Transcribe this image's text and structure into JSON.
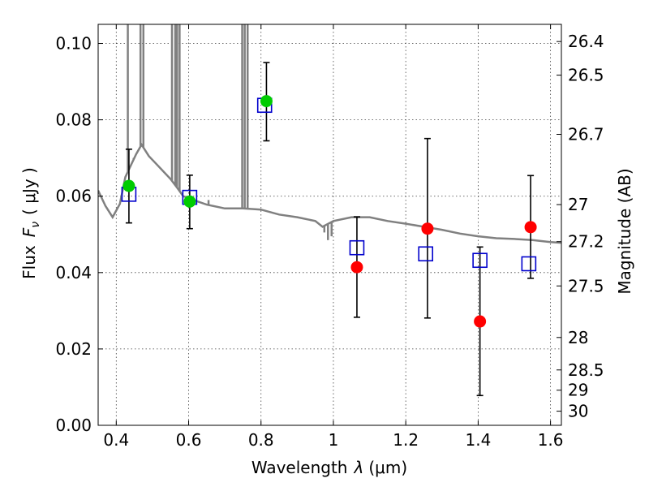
{
  "chart_data": {
    "type": "scatter",
    "xlabel_prefix": "Wavelength",
    "xlabel_symbol": "λ",
    "xlabel_unit": "(μm)",
    "ylabel_prefix": "Flux",
    "ylabel_symbol": "F",
    "ylabel_subscript": "ν",
    "ylabel_unit": "( μJy )",
    "y2label": "Magnitude (AB)",
    "xlim": [
      0.35,
      1.63
    ],
    "ylim": [
      0.0,
      0.105
    ],
    "xticks": [
      0.4,
      0.6,
      0.8,
      1.0,
      1.2,
      1.4,
      1.6
    ],
    "xtick_labels": [
      "0.4",
      "0.6",
      "0.8",
      "1",
      "1.2",
      "1.4",
      "1.6"
    ],
    "yticks": [
      0.0,
      0.02,
      0.04,
      0.06,
      0.08,
      0.1
    ],
    "ytick_labels": [
      "0.00",
      "0.02",
      "0.04",
      "0.06",
      "0.08",
      "0.10"
    ],
    "mag_ticks": [
      {
        "label": "26.4",
        "flux": 0.1005
      },
      {
        "label": "26.5",
        "flux": 0.0917
      },
      {
        "label": "26.7",
        "flux": 0.0762
      },
      {
        "label": "27",
        "flux": 0.0578
      },
      {
        "label": "27.2",
        "flux": 0.0481
      },
      {
        "label": "27.5",
        "flux": 0.0365
      },
      {
        "label": "28",
        "flux": 0.023
      },
      {
        "label": "28.5",
        "flux": 0.0145
      },
      {
        "label": "29",
        "flux": 0.0092
      },
      {
        "label": "30",
        "flux": 0.0037
      }
    ],
    "colors": {
      "template": "#808080",
      "model": "#0000cc",
      "observed_detected": "#00cc00",
      "observed_faint": "#ff0000",
      "errorbar": "#000000"
    },
    "series": [
      {
        "name": "model-template",
        "kind": "line",
        "x": [
          0.35,
          0.37,
          0.39,
          0.41,
          0.425,
          0.44,
          0.455,
          0.47,
          0.49,
          0.51,
          0.53,
          0.55,
          0.57,
          0.585,
          0.6,
          0.62,
          0.65,
          0.7,
          0.75,
          0.8,
          0.85,
          0.9,
          0.95,
          0.97,
          1.0,
          1.05,
          1.1,
          1.15,
          1.2,
          1.25,
          1.3,
          1.35,
          1.4,
          1.45,
          1.5,
          1.55,
          1.6,
          1.63
        ],
        "y": [
          0.0615,
          0.0575,
          0.0545,
          0.058,
          0.065,
          0.068,
          0.071,
          0.0735,
          0.0705,
          0.0685,
          0.0665,
          0.0645,
          0.062,
          0.06,
          0.0595,
          0.0588,
          0.0578,
          0.0568,
          0.0568,
          0.0565,
          0.0552,
          0.0545,
          0.0535,
          0.052,
          0.0535,
          0.0545,
          0.0545,
          0.0535,
          0.0528,
          0.052,
          0.0512,
          0.0502,
          0.0495,
          0.049,
          0.0488,
          0.0485,
          0.048,
          0.0478
        ]
      },
      {
        "name": "template-emission-lines",
        "kind": "spikes",
        "x": [
          0.432,
          0.448,
          0.467,
          0.475,
          0.554,
          0.563,
          0.568,
          0.575,
          0.655,
          0.748,
          0.755,
          0.763
        ],
        "y": [
          0.105,
          0.07,
          0.105,
          0.105,
          0.105,
          0.105,
          0.105,
          0.105,
          0.059,
          0.105,
          0.105,
          0.105
        ]
      },
      {
        "name": "template-absorption-lines",
        "kind": "dips",
        "x": [
          0.975,
          0.985,
          0.995
        ],
        "y": [
          0.0505,
          0.0485,
          0.0495
        ]
      },
      {
        "name": "model-photometry",
        "kind": "square",
        "x": [
          0.435,
          0.603,
          0.81,
          1.065,
          1.255,
          1.405,
          1.54
        ],
        "y": [
          0.0605,
          0.0597,
          0.0838,
          0.0465,
          0.0449,
          0.0432,
          0.0423
        ]
      },
      {
        "name": "observed-detected",
        "kind": "circle",
        "x": [
          0.435,
          0.603,
          0.815
        ],
        "y": [
          0.0627,
          0.0586,
          0.0849
        ],
        "err_low": [
          0.053,
          0.0515,
          0.0745
        ],
        "err_high": [
          0.0723,
          0.0655,
          0.095
        ]
      },
      {
        "name": "observed-faint",
        "kind": "circle",
        "x": [
          1.065,
          1.26,
          1.405,
          1.545
        ],
        "y": [
          0.0414,
          0.0515,
          0.0272,
          0.0519
        ],
        "err_low": [
          0.0283,
          0.0281,
          0.0078,
          0.0385
        ],
        "err_high": [
          0.0546,
          0.0751,
          0.0467,
          0.0654
        ]
      }
    ]
  }
}
